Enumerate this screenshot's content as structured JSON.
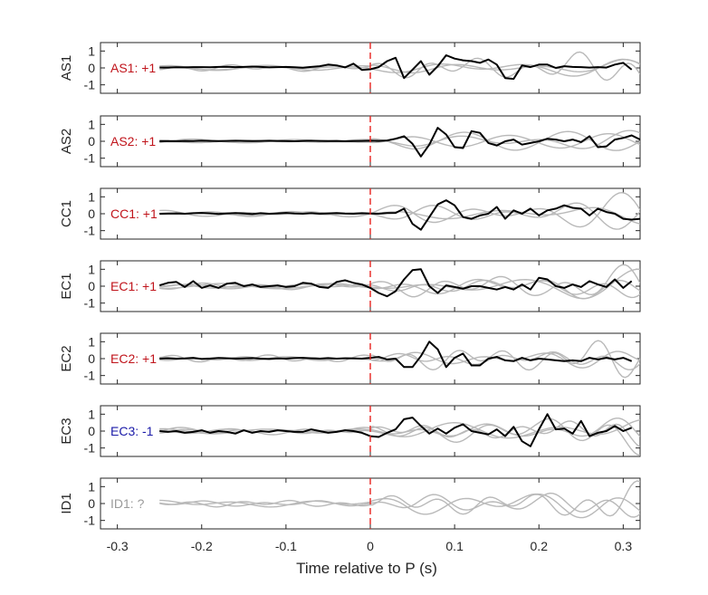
{
  "figure": {
    "xlabel": "Time relative to P (s)",
    "colors": {
      "axis": "#262626",
      "black_trace": "#000000",
      "grey_trace": "#b9b9b9",
      "p_marker": "#e8231f",
      "positive": "#c0141b",
      "negative": "#1a1aa8",
      "unknown": "#9a9a9a"
    }
  },
  "chart_data": {
    "type": "line",
    "layout": "stacked-panels",
    "xlabel": "Time relative to P (s)",
    "xlim": [
      -0.32,
      0.32
    ],
    "xticks": [
      -0.3,
      -0.2,
      -0.1,
      0,
      0.1,
      0.2,
      0.3
    ],
    "xtick_labels": [
      "-0.3",
      "-0.2",
      "-0.1",
      "0",
      "0.1",
      "0.2",
      "0.3"
    ],
    "ylim": [
      -1.5,
      1.5
    ],
    "yticks": [
      -1,
      0,
      1
    ],
    "ytick_labels": [
      "-1",
      "0",
      "1"
    ],
    "p_arrival_time": 0,
    "panels": [
      {
        "station": "AS1",
        "annotation": "AS1: +1",
        "annotation_color": "#c0141b",
        "black_t0": -0.25,
        "black_dt": 0.01,
        "black": [
          0.02,
          0.02,
          0.04,
          0.03,
          0.05,
          0.05,
          0.04,
          0.06,
          0.07,
          0.05,
          0.06,
          0.08,
          0.06,
          0.03,
          0.05,
          0.06,
          0.04,
          0.01,
          0.06,
          0.1,
          0.2,
          0.15,
          0.03,
          0.25,
          -0.12,
          -0.08,
          0.05,
          0.4,
          0.6,
          -0.6,
          -0.1,
          0.4,
          -0.4,
          0.1,
          0.75,
          0.55,
          0.45,
          0.4,
          0.3,
          0.5,
          0.2,
          -0.6,
          -0.65,
          0.15,
          0.05,
          0.2,
          0.2,
          0.0,
          0.1,
          0.06,
          0.05,
          0.02,
          0.05,
          0.02,
          0.2,
          0.3,
          -0.1
        ],
        "grey_count": 3
      },
      {
        "station": "AS2",
        "annotation": "AS2: +1",
        "annotation_color": "#c0141b",
        "black_t0": -0.25,
        "black_dt": 0.01,
        "black": [
          0.0,
          0.01,
          0.0,
          0.02,
          0.01,
          0.03,
          0.02,
          0.01,
          0.02,
          0.03,
          0.02,
          0.01,
          0.02,
          0.03,
          0.02,
          0.01,
          0.0,
          0.02,
          0.03,
          0.02,
          0.01,
          0.02,
          0.0,
          0.01,
          0.02,
          0.03,
          0.02,
          0.05,
          0.15,
          0.3,
          -0.15,
          -0.9,
          -0.2,
          0.8,
          0.4,
          -0.35,
          -0.4,
          0.6,
          0.5,
          -0.1,
          -0.25,
          0.0,
          0.1,
          -0.2,
          -0.1,
          0.0,
          0.15,
          0.1,
          0.0,
          0.1,
          -0.05,
          0.3,
          -0.35,
          -0.3,
          0.1,
          0.2,
          0.35,
          0.1
        ],
        "grey_count": 3
      },
      {
        "station": "CC1",
        "annotation": "CC1: +1",
        "annotation_color": "#c0141b",
        "black_t0": -0.25,
        "black_dt": 0.01,
        "black": [
          0.0,
          0.01,
          0.02,
          0.0,
          0.03,
          0.05,
          0.02,
          -0.01,
          0.02,
          0.04,
          0.01,
          -0.02,
          0.03,
          0.0,
          0.02,
          0.05,
          0.01,
          0.0,
          0.03,
          0.0,
          0.02,
          0.04,
          0.01,
          0.0,
          0.03,
          0.01,
          0.0,
          0.04,
          0.05,
          0.3,
          -0.6,
          -0.95,
          -0.2,
          0.55,
          0.8,
          0.5,
          -0.2,
          -0.3,
          -0.1,
          0.0,
          0.4,
          -0.3,
          0.2,
          0.0,
          0.3,
          -0.1,
          0.2,
          0.3,
          0.5,
          0.35,
          0.3,
          -0.1,
          0.3,
          0.1,
          0.0,
          -0.3,
          -0.35,
          -0.3
        ],
        "grey_count": 3
      },
      {
        "station": "EC1",
        "annotation": "EC1: +1",
        "annotation_color": "#c0141b",
        "black_t0": -0.25,
        "black_dt": 0.01,
        "black": [
          0.05,
          0.2,
          0.25,
          -0.05,
          0.3,
          -0.1,
          0.05,
          -0.1,
          0.15,
          0.2,
          0.0,
          0.1,
          -0.05,
          0.0,
          0.05,
          -0.05,
          0.0,
          0.2,
          0.15,
          -0.05,
          -0.1,
          0.25,
          0.35,
          0.2,
          0.1,
          -0.1,
          -0.4,
          -0.6,
          -0.3,
          0.4,
          0.95,
          1.0,
          0.0,
          -0.4,
          0.05,
          -0.05,
          -0.15,
          0.0,
          0.0,
          -0.1,
          -0.2,
          -0.05,
          -0.2,
          0.1,
          -0.2,
          0.5,
          0.4,
          0.0,
          -0.1,
          0.1,
          -0.05,
          0.3,
          0.1,
          -0.05,
          0.4,
          -0.1,
          0.3
        ],
        "grey_count": 4
      },
      {
        "station": "EC2",
        "annotation": "EC2: +1",
        "annotation_color": "#c0141b",
        "black_t0": -0.25,
        "black_dt": 0.01,
        "black": [
          0.0,
          0.02,
          0.0,
          0.01,
          0.05,
          -0.02,
          0.0,
          0.04,
          0.02,
          0.0,
          0.01,
          0.03,
          0.0,
          -0.02,
          0.01,
          0.0,
          0.03,
          0.05,
          0.02,
          0.0,
          0.03,
          0.0,
          0.02,
          0.01,
          0.0,
          0.05,
          0.1,
          -0.05,
          0.0,
          -0.5,
          -0.5,
          0.15,
          1.0,
          0.55,
          -0.5,
          0.05,
          0.3,
          -0.4,
          -0.4,
          0.0,
          0.1,
          -0.1,
          -0.15,
          0.05,
          -0.1,
          0.0,
          -0.05,
          -0.1,
          -0.15,
          -0.1,
          -0.15,
          0.05,
          -0.05,
          0.05,
          -0.05,
          0.05,
          -0.15
        ],
        "grey_count": 3
      },
      {
        "station": "EC3",
        "annotation": "EC3: -1",
        "annotation_color": "#1a1aa8",
        "black_t0": -0.25,
        "black_dt": 0.01,
        "black": [
          0.0,
          -0.05,
          0.0,
          -0.1,
          -0.05,
          0.05,
          -0.1,
          0.0,
          -0.05,
          -0.15,
          0.05,
          -0.1,
          0.0,
          -0.05,
          0.05,
          0.0,
          -0.05,
          -0.05,
          0.1,
          0.0,
          -0.1,
          -0.05,
          0.05,
          0.0,
          -0.1,
          -0.3,
          -0.35,
          -0.1,
          0.1,
          0.7,
          0.8,
          0.3,
          -0.15,
          0.15,
          -0.15,
          0.2,
          0.4,
          0.0,
          -0.1,
          -0.2,
          0.1,
          -0.3,
          0.25,
          -0.6,
          -0.9,
          0.1,
          1.0,
          0.1,
          0.15,
          -0.15,
          0.6,
          -0.3,
          -0.1,
          0.0,
          0.3,
          0.0,
          0.2
        ],
        "grey_count": 4
      },
      {
        "station": "ID1",
        "annotation": "ID1: ?",
        "annotation_color": "#9a9a9a",
        "black_t0": -0.25,
        "black_dt": 0.01,
        "black": [],
        "grey_count": 3
      }
    ]
  }
}
